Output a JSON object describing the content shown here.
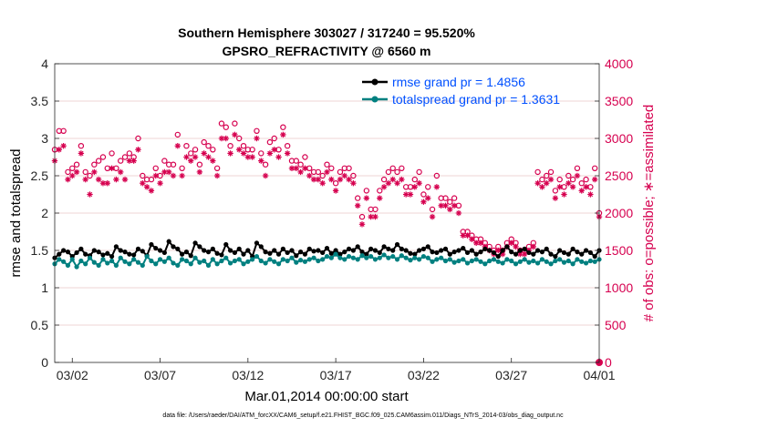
{
  "title_line1": "Southern Hemisphere 303027 / 317240 = 95.520%",
  "title_line2": "GPSRO_REFRACTIVITY @ 6560 m",
  "xlabel": "Mar.01,2014 00:00:00 start",
  "ylabel_left": "rmse and totalspread",
  "ylabel_right": "# of obs: o=possible; ∗=assimilated",
  "footer": "data file: /Users/raeder/DAI/ATM_forcXX/CAM6_setup/f.e21.FHIST_BGC.f09_025.CAM6assim.011/Diags_NTrS_2014-03/obs_diag_output.nc",
  "legend": {
    "rmse": "rmse grand pr = 1.4856",
    "spread": "totalspread grand pr = 1.3631"
  },
  "colors": {
    "rmse": "#000000",
    "spread": "#008080",
    "obs": "#d6004f",
    "legend_text": "#0050ff"
  },
  "chart_data": {
    "type": "line",
    "x_unit": "days since Mar.01,2014 00:00:00",
    "xlim": [
      0,
      31
    ],
    "x_ticks": [
      {
        "x": 1,
        "label": "03/02"
      },
      {
        "x": 6,
        "label": "03/07"
      },
      {
        "x": 11,
        "label": "03/12"
      },
      {
        "x": 16,
        "label": "03/17"
      },
      {
        "x": 21,
        "label": "03/22"
      },
      {
        "x": 26,
        "label": "03/27"
      },
      {
        "x": 31,
        "label": "04/01"
      }
    ],
    "ylim_left": [
      0,
      4
    ],
    "yticks_left": [
      "0",
      "0.5",
      "1",
      "1.5",
      "2",
      "2.5",
      "3",
      "3.5",
      "4"
    ],
    "ylim_right": [
      0,
      4000
    ],
    "yticks_right": [
      "0",
      "500",
      "1000",
      "1500",
      "2000",
      "2500",
      "3000",
      "3500",
      "4000"
    ],
    "grid": "horizontal",
    "legend_position": "top-right",
    "series": [
      {
        "name": "rmse grand pr = 1.4856",
        "axis": "left",
        "marker": "dot",
        "color": "#000000",
        "values": [
          1.4,
          1.45,
          1.5,
          1.48,
          1.42,
          1.47,
          1.52,
          1.45,
          1.43,
          1.5,
          1.48,
          1.44,
          1.46,
          1.42,
          1.55,
          1.5,
          1.48,
          1.45,
          1.44,
          1.52,
          1.49,
          1.43,
          1.58,
          1.53,
          1.5,
          1.47,
          1.62,
          1.55,
          1.52,
          1.45,
          1.48,
          1.43,
          1.6,
          1.55,
          1.5,
          1.48,
          1.52,
          1.46,
          1.44,
          1.58,
          1.5,
          1.47,
          1.52,
          1.45,
          1.5,
          1.42,
          1.6,
          1.55,
          1.48,
          1.46,
          1.5,
          1.45,
          1.52,
          1.47,
          1.5,
          1.43,
          1.48,
          1.45,
          1.52,
          1.49,
          1.5,
          1.47,
          1.53,
          1.46,
          1.5,
          1.45,
          1.48,
          1.52,
          1.5,
          1.55,
          1.48,
          1.45,
          1.52,
          1.5,
          1.47,
          1.55,
          1.52,
          1.5,
          1.58,
          1.52,
          1.5,
          1.46,
          1.45,
          1.5,
          1.52,
          1.55,
          1.48,
          1.47,
          1.5,
          1.52,
          1.45,
          1.48,
          1.5,
          1.53,
          1.47,
          1.5,
          1.45,
          1.48,
          1.52,
          1.5,
          1.47,
          1.42,
          1.5,
          1.55,
          1.48,
          1.45,
          1.5,
          1.52,
          1.47,
          1.45,
          1.5,
          1.48,
          1.52,
          1.45,
          1.42,
          1.5,
          1.47,
          1.45,
          1.52,
          1.48,
          1.45,
          1.5,
          1.47,
          1.42,
          1.5
        ]
      },
      {
        "name": "totalspread grand pr = 1.3631",
        "axis": "left",
        "marker": "dot",
        "color": "#008080",
        "values": [
          1.32,
          1.38,
          1.35,
          1.3,
          1.38,
          1.28,
          1.36,
          1.32,
          1.4,
          1.34,
          1.3,
          1.38,
          1.33,
          1.36,
          1.3,
          1.4,
          1.35,
          1.32,
          1.38,
          1.34,
          1.3,
          1.42,
          1.36,
          1.32,
          1.38,
          1.35,
          1.4,
          1.33,
          1.3,
          1.38,
          1.36,
          1.32,
          1.4,
          1.34,
          1.36,
          1.3,
          1.38,
          1.32,
          1.36,
          1.4,
          1.33,
          1.36,
          1.38,
          1.32,
          1.35,
          1.38,
          1.42,
          1.36,
          1.33,
          1.38,
          1.35,
          1.32,
          1.38,
          1.36,
          1.4,
          1.34,
          1.37,
          1.35,
          1.38,
          1.4,
          1.36,
          1.38,
          1.42,
          1.4,
          1.45,
          1.4,
          1.38,
          1.42,
          1.4,
          1.38,
          1.43,
          1.4,
          1.42,
          1.38,
          1.4,
          1.44,
          1.4,
          1.42,
          1.38,
          1.43,
          1.4,
          1.37,
          1.4,
          1.38,
          1.42,
          1.4,
          1.35,
          1.38,
          1.4,
          1.36,
          1.38,
          1.34,
          1.36,
          1.38,
          1.33,
          1.36,
          1.38,
          1.35,
          1.32,
          1.36,
          1.38,
          1.35,
          1.33,
          1.38,
          1.36,
          1.32,
          1.35,
          1.38,
          1.34,
          1.36,
          1.33,
          1.38,
          1.35,
          1.32,
          1.36,
          1.38,
          1.34,
          1.36,
          1.32,
          1.38,
          1.35,
          1.33,
          1.36,
          1.35,
          1.38
        ]
      },
      {
        "name": "possible",
        "axis": "right",
        "marker": "o",
        "color": "#d6004f",
        "values": [
          2850,
          3100,
          3100,
          2550,
          2600,
          2650,
          2900,
          2550,
          2500,
          2650,
          2700,
          2750,
          2600,
          2800,
          2600,
          2700,
          2750,
          2800,
          2750,
          3000,
          2500,
          2450,
          2450,
          2600,
          2500,
          2700,
          2650,
          2650,
          3050,
          2600,
          2900,
          2800,
          2850,
          2650,
          2950,
          2900,
          2850,
          2600,
          3200,
          3150,
          2900,
          3200,
          3000,
          2900,
          2850,
          2850,
          3100,
          2800,
          2650,
          2950,
          3000,
          2850,
          3150,
          2900,
          2700,
          2700,
          2650,
          2750,
          2600,
          2550,
          2550,
          2500,
          2650,
          2600,
          2400,
          2550,
          2600,
          2600,
          2500,
          2200,
          1950,
          2300,
          2050,
          2050,
          2300,
          2450,
          2550,
          2600,
          2550,
          2600,
          2350,
          2350,
          2450,
          2550,
          2250,
          2350,
          2050,
          2500,
          2200,
          2200,
          2150,
          2200,
          2100,
          1750,
          1750,
          1700,
          1650,
          1650,
          1600,
          1550,
          1500,
          1550,
          1500,
          1600,
          1650,
          1600,
          1500,
          1500,
          1550,
          1600,
          2550,
          2450,
          2500,
          2550,
          2300,
          2450,
          2350,
          2500,
          2450,
          2600,
          2400,
          2450,
          2350,
          2600,
          2000
        ]
      },
      {
        "name": "assimilated",
        "axis": "right",
        "marker": "*",
        "color": "#d6004f",
        "values": [
          2700,
          2850,
          2900,
          2450,
          2500,
          2550,
          2800,
          2450,
          2250,
          2550,
          2450,
          2400,
          2400,
          2600,
          2450,
          2550,
          2450,
          2700,
          2700,
          2850,
          2400,
          2350,
          2300,
          2500,
          2400,
          2550,
          2550,
          2500,
          2900,
          2500,
          2750,
          2700,
          2750,
          2550,
          2800,
          2750,
          2700,
          2500,
          3000,
          3000,
          2800,
          3050,
          2850,
          2800,
          2750,
          2750,
          3000,
          2700,
          2500,
          2800,
          2850,
          2750,
          3050,
          2800,
          2600,
          2600,
          2550,
          2600,
          2500,
          2450,
          2450,
          2400,
          2550,
          2450,
          2300,
          2450,
          2500,
          2450,
          2400,
          2100,
          1850,
          2200,
          1950,
          1950,
          2200,
          2350,
          2400,
          2450,
          2400,
          2450,
          2250,
          2250,
          2350,
          2400,
          2150,
          2200,
          1950,
          2350,
          2100,
          2100,
          2050,
          2100,
          2000,
          1700,
          1700,
          1650,
          1600,
          1600,
          1550,
          1500,
          1450,
          1500,
          1450,
          1550,
          1600,
          1550,
          1450,
          1450,
          1500,
          1550,
          2400,
          2350,
          2400,
          2450,
          2200,
          2350,
          2250,
          2400,
          2350,
          2500,
          2300,
          2350,
          2250,
          2450,
          1950
        ]
      }
    ]
  }
}
